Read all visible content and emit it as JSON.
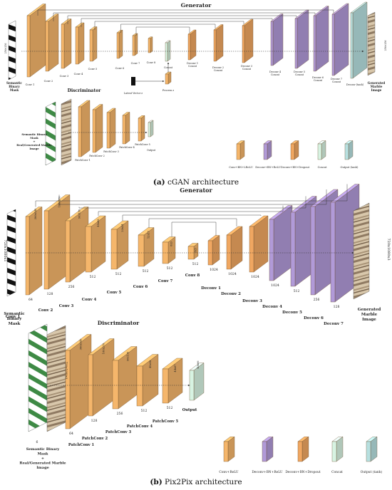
{
  "colors": {
    "conv": "#f5b66b",
    "deconv": "#b19ad8",
    "deconv_drop": "#f0a761",
    "concat": "#d7f3e2",
    "output": "#b7e0e0",
    "edge": "#6a4a2a",
    "arrow": "#333333",
    "mask_dark": "#111111",
    "marble": "#c9b79d",
    "green_mask": "#3e8a45"
  },
  "panel_a": {
    "generator_title": "Generator",
    "discriminator_title": "Discriminator",
    "caption_letter": "(a)",
    "caption_text": " cGAN architecture",
    "input_label": [
      "Semantic",
      "Binary",
      "Mask"
    ],
    "output_label": [
      "Generated",
      "Marble",
      "Image"
    ],
    "input_dim": "256×256",
    "output_dim": "256×256",
    "enc_labels": [
      "Conv 1",
      "Conv 2",
      "Conv 3",
      "Conv 4",
      "Conv 5",
      "Conv 6",
      "Conv 7",
      "Conv 8"
    ],
    "dec_labels": [
      "Deconv 1 Concat",
      "Deconv 2 Concat",
      "Deconv 3 Concat",
      "Deconv 4 Concat",
      "Deconv 5 Concat",
      "Deconv 6 Concat",
      "Deconv 7 Concat",
      "Deconv (tanh)"
    ],
    "latent_label": "Latent Vector z",
    "process_label": "Process z",
    "concat_label": "Concat",
    "disc_input_label": [
      "Semantic Binary",
      "Mask",
      "+",
      "Real/Generated Marble",
      "Image"
    ],
    "disc_labels": [
      "PatchConv 1",
      "PatchConv 2",
      "PatchConv 3",
      "PatchConv 4",
      "PatchConv 5"
    ],
    "disc_output": "Output",
    "legend": [
      "Conv+BN+LReLU",
      "Deconv+BN+ReLU",
      "Deconv+BN+Dropout",
      "Concat",
      "Output (tanh)"
    ]
  },
  "panel_b": {
    "generator_title": "Generator",
    "discriminator_title": "Discriminator",
    "caption_letter": "(b)",
    "caption_text": " Pix2Pix architecture",
    "input_label": [
      "Semantic",
      "Binary",
      "Mask"
    ],
    "output_label": [
      "Generated",
      "Marble",
      "Image"
    ],
    "input_dim": "720x1080x1",
    "output_dim": "720x1080x3",
    "enc_labels": [
      "Conv 1",
      "Conv 2",
      "Conv 3",
      "Conv 4",
      "Conv 5",
      "Conv 6",
      "Conv 7",
      "Conv 8"
    ],
    "enc_channels": [
      "64",
      "128",
      "256",
      "512",
      "512",
      "512",
      "512",
      "512"
    ],
    "enc_dims": [
      "360x540",
      "180x270",
      "90x135",
      "45x68",
      "23x34",
      "12x17",
      "6x9",
      "3x5"
    ],
    "dec_labels": [
      "Deconv 1",
      "Deconv 2",
      "Deconv 3",
      "Deconv 4",
      "Deconv 5",
      "Deconv 6",
      "Deconv 7"
    ],
    "dec_channels": [
      "1024",
      "1024",
      "1024",
      "1024",
      "512",
      "256",
      "128"
    ],
    "disc_input_label": [
      "Semantic Binary",
      "Mask",
      "+",
      "Real/Generated Marble",
      "Image"
    ],
    "disc_input_channels": "6",
    "disc_labels": [
      "PatchConv 1",
      "PatchConv 2",
      "PatchConv 3",
      "PatchConv 4",
      "PatchConv 5"
    ],
    "disc_channels": [
      "64",
      "128",
      "256",
      "512",
      "512"
    ],
    "disc_dims": [
      "360x540",
      "180x270",
      "90x135",
      "45x68",
      "44x67"
    ],
    "disc_output": "Output",
    "disc_output_dim": "43x66",
    "legend": [
      "Conv+ReLU",
      "Deconv+BN+ReLU",
      "Deconv+BN+Dropout",
      "Concat",
      "Output (tanh)"
    ]
  }
}
